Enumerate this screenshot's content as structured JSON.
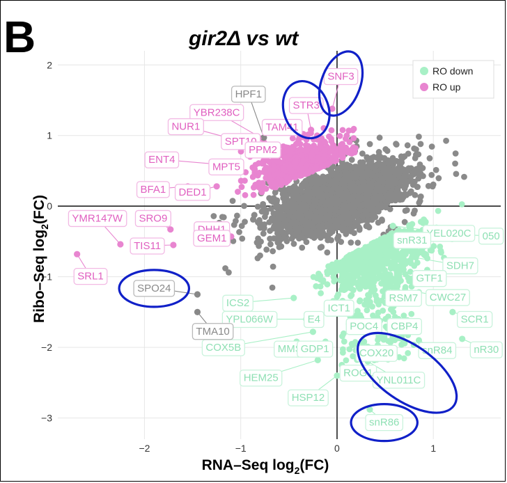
{
  "panel_letter": "B",
  "chart_data": {
    "type": "scatter",
    "title": "gir2Δ vs wt",
    "xlabel": "RNA–Seq log",
    "xlabel_sub": "2",
    "xlabel_suffix": "(FC)",
    "ylabel": "Ribo–Seq log",
    "ylabel_sub": "2",
    "ylabel_suffix": "(FC)",
    "xlim": [
      -2.9,
      1.7
    ],
    "ylim": [
      -3.3,
      2.2
    ],
    "xticks": [
      -2,
      -1,
      0,
      1
    ],
    "yticks": [
      2,
      1,
      0,
      -1,
      -2,
      -3
    ],
    "tick_labels_x": [
      "−2",
      "−1",
      "0",
      "1"
    ],
    "tick_labels_y": [
      "2",
      "1",
      "0",
      "−1",
      "−2",
      "−3"
    ],
    "reference_lines": {
      "x": 0,
      "y": 0
    },
    "grid": true,
    "legend_position": "top-right",
    "legend": [
      {
        "name": "RO down",
        "color": "#a8f0c6"
      },
      {
        "name": "RO up",
        "color": "#e885d0"
      }
    ],
    "colors": {
      "background_series": "#8a8a8a",
      "ro_down": "#a8f0c6",
      "ro_up": "#e885d0",
      "highlight_ellipse": "#1020c8",
      "neutral_label": "#888888"
    },
    "series": [
      {
        "name": "RO up",
        "color": "#e885d0",
        "labeled_points": [
          {
            "gene": "SNF3",
            "x": -0.05,
            "y": 1.38,
            "lx": 0.04,
            "ly": 1.84
          },
          {
            "gene": "STR3",
            "x": -0.27,
            "y": 1.08,
            "lx": -0.32,
            "ly": 1.43
          },
          {
            "gene": "YBR238C",
            "x": -0.78,
            "y": 0.96,
            "lx": -1.25,
            "ly": 1.33
          },
          {
            "gene": "TAM41",
            "x": -0.35,
            "y": 1.02,
            "lx": -0.57,
            "ly": 1.12
          },
          {
            "gene": "NUR1",
            "x": -1.08,
            "y": 0.95,
            "lx": -1.57,
            "ly": 1.13
          },
          {
            "gene": "SPT10",
            "x": -0.9,
            "y": 0.84,
            "lx": -1.0,
            "ly": 0.92
          },
          {
            "gene": "PPM2",
            "x": -0.6,
            "y": 0.72,
            "lx": -0.77,
            "ly": 0.8
          },
          {
            "gene": "ENT4",
            "x": -1.3,
            "y": 0.6,
            "lx": -1.82,
            "ly": 0.66
          },
          {
            "gene": "MPT5",
            "x": -1.02,
            "y": 0.6,
            "lx": -1.15,
            "ly": 0.56
          },
          {
            "gene": "BFA1",
            "x": -1.55,
            "y": 0.28,
            "lx": -1.91,
            "ly": 0.24
          },
          {
            "gene": "DED1",
            "x": -1.25,
            "y": 0.28,
            "lx": -1.5,
            "ly": 0.2
          },
          {
            "gene": "YMR147W",
            "x": -2.25,
            "y": -0.54,
            "lx": -2.49,
            "ly": -0.17
          },
          {
            "gene": "SRO9",
            "x": -1.73,
            "y": -0.33,
            "lx": -1.91,
            "ly": -0.17
          },
          {
            "gene": "DHH1",
            "x": -1.27,
            "y": -0.44,
            "lx": -1.3,
            "ly": -0.33
          },
          {
            "gene": "TIS11",
            "x": -1.7,
            "y": -0.55,
            "lx": -1.97,
            "ly": -0.56
          },
          {
            "gene": "GEM1",
            "x": -1.1,
            "y": -0.43,
            "lx": -1.3,
            "ly": -0.45
          },
          {
            "gene": "SRL1",
            "x": -2.7,
            "y": -0.68,
            "lx": -2.56,
            "ly": -0.99
          }
        ]
      },
      {
        "name": "RO down",
        "color": "#a8f0c6",
        "labeled_points": [
          {
            "gene": "YEL020C",
            "x": 0.58,
            "y": -0.28,
            "lx": 1.16,
            "ly": -0.38
          },
          {
            "gene": "050",
            "x": 1.15,
            "y": -0.4,
            "lx": 1.6,
            "ly": -0.42
          },
          {
            "gene": "snR31",
            "x": 0.5,
            "y": -0.52,
            "lx": 0.78,
            "ly": -0.48
          },
          {
            "gene": "SDH7",
            "x": 0.78,
            "y": -0.72,
            "lx": 1.28,
            "ly": -0.84
          },
          {
            "gene": "GTF1",
            "x": 0.56,
            "y": -0.88,
            "lx": 0.96,
            "ly": -1.02
          },
          {
            "gene": "RSM7",
            "x": 0.52,
            "y": -1.18,
            "lx": 0.69,
            "ly": -1.3
          },
          {
            "gene": "CWC27",
            "x": 0.85,
            "y": -1.22,
            "lx": 1.15,
            "ly": -1.29
          },
          {
            "gene": "ICS2",
            "x": -0.45,
            "y": -1.3,
            "lx": -1.03,
            "ly": -1.37
          },
          {
            "gene": "ICT1",
            "x": 0.1,
            "y": -1.37,
            "lx": 0.02,
            "ly": -1.44
          },
          {
            "gene": "YPL066W",
            "x": -0.32,
            "y": -1.6,
            "lx": -0.91,
            "ly": -1.6
          },
          {
            "gene": "E4",
            "x": -0.18,
            "y": -1.6,
            "lx": -0.24,
            "ly": -1.6
          },
          {
            "gene": "SCR1",
            "x": 1.2,
            "y": -1.5,
            "lx": 1.43,
            "ly": -1.6
          },
          {
            "gene": "POC4",
            "x": 0.25,
            "y": -1.58,
            "lx": 0.28,
            "ly": -1.7
          },
          {
            "gene": "CBP4",
            "x": 0.42,
            "y": -1.58,
            "lx": 0.7,
            "ly": -1.7
          },
          {
            "gene": "COX5B",
            "x": -0.25,
            "y": -1.78,
            "lx": -1.18,
            "ly": -2.0
          },
          {
            "gene": "MMS",
            "x": -0.42,
            "y": -1.92,
            "lx": -0.49,
            "ly": -2.02
          },
          {
            "gene": "GDP1",
            "x": -0.12,
            "y": -1.92,
            "lx": -0.23,
            "ly": -2.02
          },
          {
            "gene": "COX20",
            "x": 0.28,
            "y": -1.92,
            "lx": 0.41,
            "ly": -2.08
          },
          {
            "gene": "snR84",
            "x": 0.85,
            "y": -1.9,
            "lx": 1.04,
            "ly": -2.04
          },
          {
            "gene": "nR30",
            "x": 1.3,
            "y": -1.88,
            "lx": 1.55,
            "ly": -2.03
          },
          {
            "gene": "HEM25",
            "x": -0.2,
            "y": -2.18,
            "lx": -0.79,
            "ly": -2.43
          },
          {
            "gene": "ROG1",
            "x": 0.05,
            "y": -2.25,
            "lx": 0.22,
            "ly": -2.36
          },
          {
            "gene": "YNL011C",
            "x": 0.32,
            "y": -2.2,
            "lx": 0.64,
            "ly": -2.46
          },
          {
            "gene": "HSP12",
            "x": 0.0,
            "y": -2.4,
            "lx": -0.3,
            "ly": -2.71
          },
          {
            "gene": "snR86",
            "x": 0.34,
            "y": -2.88,
            "lx": 0.49,
            "ly": -3.06
          }
        ]
      },
      {
        "name": "",
        "color": "#888888",
        "labeled_points": [
          {
            "gene": "HPF1",
            "x": -0.76,
            "y": 0.97,
            "lx": -0.92,
            "ly": 1.59
          },
          {
            "gene": "SPO24",
            "x": -1.45,
            "y": -1.25,
            "lx": -1.9,
            "ly": -1.16
          },
          {
            "gene": "TMA10",
            "x": -1.45,
            "y": -1.5,
            "lx": -1.29,
            "ly": -1.77
          }
        ]
      }
    ],
    "highlighted_genes": [
      "SNF3",
      "STR3",
      "SPO24",
      "COX20",
      "snR86"
    ]
  }
}
